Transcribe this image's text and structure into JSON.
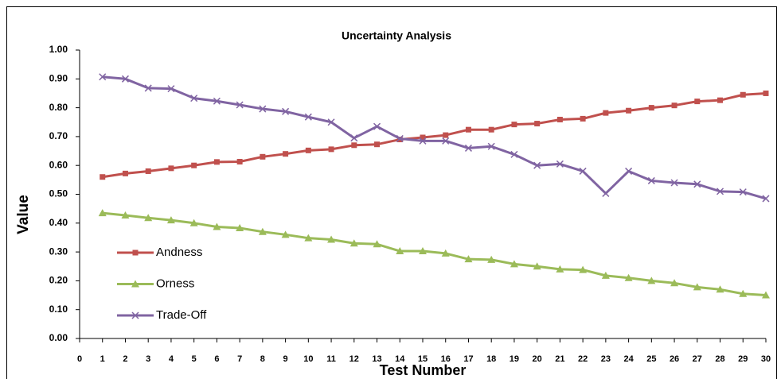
{
  "chart_data": {
    "type": "line",
    "title": "Uncertainty Analysis",
    "x_label": "Test Number",
    "y_label": "Value",
    "x": [
      1,
      2,
      3,
      4,
      5,
      6,
      7,
      8,
      9,
      10,
      11,
      12,
      13,
      14,
      15,
      16,
      17,
      18,
      19,
      20,
      21,
      22,
      23,
      24,
      25,
      26,
      27,
      28,
      29,
      30
    ],
    "series": [
      {
        "name": "Andness",
        "color": "#c0504d",
        "marker": "square",
        "values": [
          0.56,
          0.572,
          0.58,
          0.59,
          0.6,
          0.612,
          0.613,
          0.63,
          0.64,
          0.652,
          0.656,
          0.67,
          0.673,
          0.69,
          0.697,
          0.705,
          0.724,
          0.724,
          0.742,
          0.745,
          0.759,
          0.762,
          0.782,
          0.79,
          0.8,
          0.808,
          0.822,
          0.826,
          0.845,
          0.85
        ]
      },
      {
        "name": "Orness",
        "color": "#9bbb59",
        "marker": "triangle",
        "values": [
          0.435,
          0.427,
          0.418,
          0.41,
          0.4,
          0.387,
          0.383,
          0.37,
          0.36,
          0.348,
          0.343,
          0.33,
          0.327,
          0.303,
          0.303,
          0.295,
          0.275,
          0.273,
          0.258,
          0.25,
          0.24,
          0.238,
          0.218,
          0.21,
          0.2,
          0.192,
          0.178,
          0.17,
          0.155,
          0.15
        ]
      },
      {
        "name": "Trade-Off",
        "color": "#8064a2",
        "marker": "x",
        "values": [
          0.907,
          0.9,
          0.868,
          0.866,
          0.833,
          0.823,
          0.81,
          0.796,
          0.787,
          0.768,
          0.75,
          0.695,
          0.735,
          0.693,
          0.685,
          0.685,
          0.66,
          0.666,
          0.638,
          0.6,
          0.605,
          0.58,
          0.503,
          0.58,
          0.547,
          0.54,
          0.535,
          0.51,
          0.508,
          0.485
        ]
      }
    ],
    "xlim": [
      0,
      30
    ],
    "xticks": [
      0,
      1,
      2,
      3,
      4,
      5,
      6,
      7,
      8,
      9,
      10,
      11,
      12,
      13,
      14,
      15,
      16,
      17,
      18,
      19,
      20,
      21,
      22,
      23,
      24,
      25,
      26,
      27,
      28,
      29,
      30
    ],
    "ylim": [
      0,
      1
    ],
    "yticks": [
      {
        "value": 0,
        "label": "0.00"
      },
      {
        "value": 0.1,
        "label": "0.10"
      },
      {
        "value": 0.2,
        "label": "0.20"
      },
      {
        "value": 0.3,
        "label": "0.30"
      },
      {
        "value": 0.4,
        "label": "0.40"
      },
      {
        "value": 0.5,
        "label": "0.50"
      },
      {
        "value": 0.6,
        "label": "0.60"
      },
      {
        "value": 0.7,
        "label": "0.70"
      },
      {
        "value": 0.8,
        "label": "0.80"
      },
      {
        "value": 0.9,
        "label": "0.90"
      },
      {
        "value": 1,
        "label": "1.00"
      }
    ],
    "grid": false,
    "legend": "left"
  }
}
